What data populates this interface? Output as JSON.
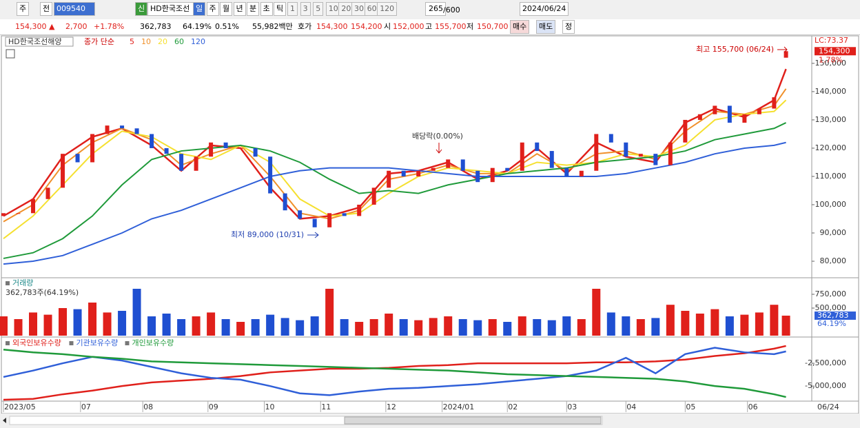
{
  "toolbar": {
    "period": "주",
    "view": "전",
    "code": "009540",
    "badge": "신",
    "name": "HD한국조선",
    "intervals": [
      "일",
      "주",
      "월",
      "년",
      "분",
      "초",
      "틱"
    ],
    "counts": [
      "1",
      "3",
      "5",
      "10",
      "20",
      "30",
      "60",
      "120"
    ],
    "visible_count": "265",
    "total_count": "/600",
    "date": "2024/06/24"
  },
  "quote_bar": {
    "price": "154,300 ▲",
    "change": "2,700",
    "change_pct": "+1.78%",
    "volume": "362,783",
    "volume_ratio": "64.19%",
    "turnover": "0.51%",
    "amount": "55,982백만",
    "ask_label": "호가",
    "ask": "154,300",
    "bid": "154,200",
    "open_label": "시",
    "open": "152,000",
    "high_label": "고",
    "high": "155,700",
    "low_label": "저",
    "low": "150,700",
    "buy": "매수",
    "sell": "매도",
    "edit": "정"
  },
  "chart_data": [
    {
      "type": "candlestick",
      "title": "HD한국조선해양",
      "legend_prefix": "종가 단순",
      "lc_label": "LC:73.37",
      "current_label": "154,300",
      "change_label": "1.78%",
      "annotations": [
        "최고 155,700 (06/24)",
        "최저 89,000 (10/31)",
        "배당락(0.00%)"
      ],
      "xlim": [
        0,
        272
      ],
      "ylim": [
        74400,
        159000
      ],
      "yticks": [
        {
          "value": 80000,
          "label": "80,000"
        },
        {
          "value": 90000,
          "label": "90,000"
        },
        {
          "value": 100000,
          "label": "100,000"
        },
        {
          "value": 110000,
          "label": "110,000"
        },
        {
          "value": 120000,
          "label": "120,000"
        },
        {
          "value": 130000,
          "label": "130,000"
        },
        {
          "value": 140000,
          "label": "140,000"
        },
        {
          "value": 150000,
          "label": "150,000"
        }
      ],
      "color_up": "#e0201b",
      "color_down": "#1f4fd1",
      "x": [
        0,
        5,
        10,
        15,
        20,
        25,
        30,
        35,
        40,
        45,
        50,
        55,
        60,
        65,
        70,
        75,
        80,
        85,
        90,
        95,
        100,
        105,
        110,
        115,
        120,
        125,
        130,
        135,
        140,
        145,
        150,
        155,
        160,
        165,
        170,
        175,
        180,
        185,
        190,
        195,
        200,
        205,
        210,
        215,
        220,
        225,
        230,
        235,
        240,
        245,
        250,
        255,
        260,
        264
      ],
      "open": [
        96000,
        97000,
        97000,
        102000,
        106000,
        118000,
        115000,
        125000,
        128000,
        127000,
        125000,
        120000,
        118000,
        112000,
        117000,
        122000,
        120000,
        120000,
        117000,
        104000,
        98000,
        95000,
        92000,
        97000,
        96000,
        100000,
        106000,
        112000,
        110000,
        112000,
        113000,
        116000,
        112000,
        108000,
        113000,
        112000,
        122000,
        119000,
        113000,
        110000,
        112000,
        125000,
        122000,
        117000,
        118000,
        114000,
        122000,
        130000,
        132000,
        135000,
        129000,
        132000,
        134000,
        152000
      ],
      "close": [
        97000,
        97000,
        102000,
        106000,
        118000,
        115000,
        125000,
        128000,
        127000,
        125000,
        120000,
        118000,
        112000,
        117000,
        122000,
        120000,
        120000,
        117000,
        104000,
        98000,
        95000,
        92000,
        97000,
        96000,
        100000,
        106000,
        112000,
        110000,
        112000,
        113000,
        116000,
        112000,
        108000,
        113000,
        112000,
        122000,
        119000,
        113000,
        110000,
        112000,
        125000,
        122000,
        117000,
        118000,
        114000,
        122000,
        130000,
        132000,
        135000,
        129000,
        132000,
        134000,
        138000,
        154300
      ],
      "lines": {
        "x": [
          0,
          10,
          20,
          30,
          40,
          50,
          60,
          70,
          80,
          90,
          100,
          110,
          120,
          130,
          140,
          150,
          160,
          170,
          180,
          190,
          200,
          210,
          220,
          230,
          240,
          250,
          260,
          264
        ],
        "series": [
          {
            "name": "5",
            "color": "#e0201b",
            "values": [
              96000,
              102000,
              117000,
              124000,
              127000,
              121000,
              112000,
              121000,
              120000,
              106000,
              95000,
              96000,
              99000,
              111000,
              112000,
              115000,
              109000,
              112000,
              120000,
              111000,
              122000,
              117000,
              115000,
              129000,
              134000,
              131000,
              137000,
              148000
            ]
          },
          {
            "name": "10",
            "color": "#f0902a",
            "values": [
              94000,
              100000,
              114000,
              122000,
              127000,
              123000,
              114000,
              118000,
              121000,
              110000,
              97000,
              95000,
              98000,
              109000,
              111000,
              114000,
              111000,
              111000,
              118000,
              112000,
              118000,
              119000,
              116000,
              126000,
              133000,
              132000,
              135000,
              141000
            ]
          },
          {
            "name": "20",
            "color": "#f5e030",
            "values": [
              88000,
              96000,
              107000,
              118000,
              126000,
              124000,
              118000,
              116000,
              121000,
              115000,
              102000,
              96000,
              97000,
              104000,
              110000,
              113000,
              112000,
              111000,
              115000,
              114000,
              115000,
              118000,
              117000,
              121000,
              130000,
              132000,
              133000,
              137000
            ]
          },
          {
            "name": "60",
            "color": "#1f9a3a",
            "values": [
              81000,
              83000,
              88000,
              96000,
              107000,
              116000,
              119000,
              120000,
              121000,
              119000,
              115000,
              109000,
              104000,
              105000,
              104000,
              107000,
              109000,
              111000,
              112000,
              113000,
              115000,
              116000,
              117000,
              119000,
              123000,
              125000,
              127000,
              129000
            ]
          },
          {
            "name": "120",
            "color": "#2f5fd8",
            "values": [
              79000,
              80000,
              82000,
              86000,
              90000,
              95000,
              98000,
              102000,
              106000,
              110000,
              112000,
              113000,
              113000,
              113000,
              112000,
              111000,
              110000,
              110000,
              110000,
              110000,
              110000,
              111000,
              113000,
              115000,
              118000,
              120000,
              121000,
              122000
            ]
          }
        ]
      }
    },
    {
      "type": "bar",
      "title": "거래량",
      "subtitle": "362,783주(64.19%)",
      "current_label": "362,783",
      "ratio_label": "64.19%",
      "ylim": [
        0,
        1000000
      ],
      "yticks": [
        {
          "value": 750000,
          "label": "750,000"
        },
        {
          "value": 500000,
          "label": "500,000"
        }
      ],
      "values": [
        350000,
        300000,
        420000,
        380000,
        500000,
        480000,
        600000,
        420000,
        450000,
        850000,
        350000,
        400000,
        300000,
        350000,
        420000,
        300000,
        250000,
        300000,
        380000,
        320000,
        280000,
        350000,
        850000,
        300000,
        250000,
        300000,
        400000,
        300000,
        280000,
        320000,
        350000,
        300000,
        280000,
        300000,
        250000,
        350000,
        300000,
        280000,
        350000,
        300000,
        850000,
        420000,
        350000,
        300000,
        320000,
        560000,
        450000,
        400000,
        480000,
        350000,
        380000,
        420000,
        560000,
        362783
      ]
    },
    {
      "type": "line",
      "ylim": [
        -6650000,
        150000
      ],
      "yticks": [
        {
          "value": -2500000,
          "label": "-2,500,000"
        },
        {
          "value": -5000000,
          "label": "-5,000,000"
        }
      ],
      "x": [
        0,
        10,
        20,
        30,
        40,
        50,
        60,
        70,
        80,
        90,
        100,
        110,
        120,
        130,
        140,
        150,
        160,
        170,
        180,
        190,
        200,
        210,
        220,
        230,
        240,
        250,
        260,
        264
      ],
      "series": [
        {
          "name": "외국인보유수량",
          "color": "#e0201b",
          "values": [
            -6500000,
            -6400000,
            -5900000,
            -5500000,
            -5000000,
            -4600000,
            -4400000,
            -4200000,
            -3900000,
            -3500000,
            -3300000,
            -3100000,
            -3100000,
            -3000000,
            -2800000,
            -2700000,
            -2500000,
            -2500000,
            -2500000,
            -2500000,
            -2400000,
            -2400000,
            -2300000,
            -2100000,
            -1700000,
            -1400000,
            -900000,
            -600000
          ]
        },
        {
          "name": "기관보유수량",
          "color": "#2f5fd8",
          "values": [
            -4000000,
            -3300000,
            -2500000,
            -1800000,
            -2200000,
            -2900000,
            -3600000,
            -4100000,
            -4300000,
            -5000000,
            -5800000,
            -6000000,
            -5600000,
            -5300000,
            -5200000,
            -5000000,
            -4800000,
            -4500000,
            -4200000,
            -3900000,
            -3300000,
            -1900000,
            -3600000,
            -1500000,
            -800000,
            -1300000,
            -1500000,
            -1200000
          ]
        },
        {
          "name": "개인보유수량",
          "color": "#1f9a3a",
          "values": [
            -1000000,
            -1300000,
            -1500000,
            -1800000,
            -2000000,
            -2300000,
            -2400000,
            -2500000,
            -2600000,
            -2700000,
            -2800000,
            -2900000,
            -3000000,
            -3100000,
            -3200000,
            -3300000,
            -3500000,
            -3700000,
            -3800000,
            -3900000,
            -4000000,
            -4100000,
            -4200000,
            -4500000,
            -5000000,
            -5300000,
            -5900000,
            -6200000
          ]
        }
      ],
      "xticks": [
        {
          "value": 0,
          "label": "2023/05"
        },
        {
          "value": 26,
          "label": "07"
        },
        {
          "value": 47,
          "label": "08"
        },
        {
          "value": 69,
          "label": "09"
        },
        {
          "value": 88,
          "label": "10"
        },
        {
          "value": 107,
          "label": "11"
        },
        {
          "value": 129,
          "label": "12"
        },
        {
          "value": 148,
          "label": "2024/01"
        },
        {
          "value": 170,
          "label": "02"
        },
        {
          "value": 190,
          "label": "03"
        },
        {
          "value": 210,
          "label": "04"
        },
        {
          "value": 230,
          "label": "05"
        },
        {
          "value": 251,
          "label": "06"
        }
      ],
      "last_date_label": "06/24"
    }
  ]
}
